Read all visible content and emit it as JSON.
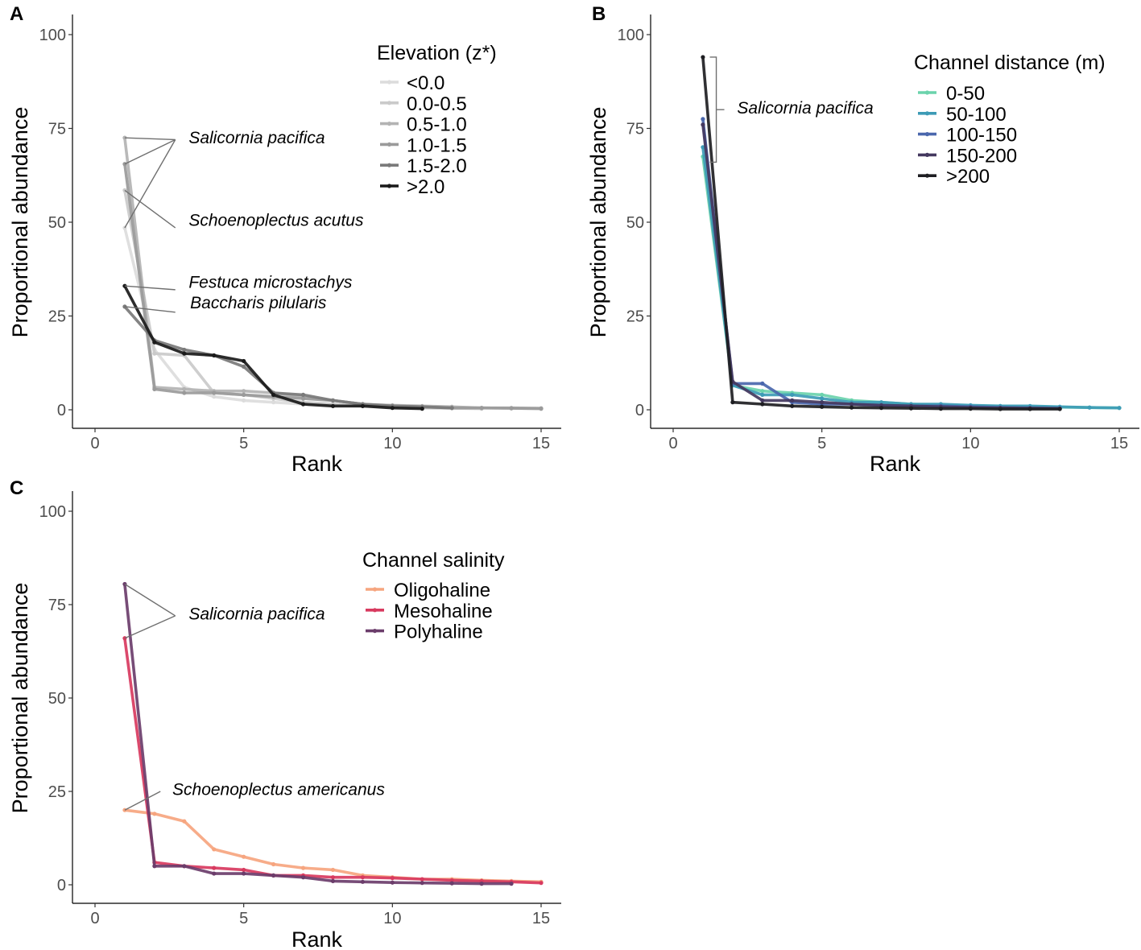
{
  "chart_data": [
    {
      "panel": "A",
      "type": "line",
      "xlabel": "Rank",
      "ylabel": "Proportional abundance",
      "xlim": [
        0,
        15
      ],
      "ylim": [
        0,
        100
      ],
      "xticks": [
        0,
        5,
        10,
        15
      ],
      "yticks": [
        0,
        25,
        50,
        75,
        100
      ],
      "grid": false,
      "legend": {
        "title": "Elevation (z*)",
        "position": "top-right"
      },
      "series": [
        {
          "name": "<0.0",
          "color": "#dcdcdc",
          "points": [
            [
              1,
              48.5
            ],
            [
              2,
              16
            ],
            [
              3,
              6
            ],
            [
              4,
              3.5
            ],
            [
              5,
              2.5
            ],
            [
              6,
              2
            ],
            [
              7,
              1.5
            ],
            [
              8,
              1.2
            ],
            [
              9,
              1
            ],
            [
              10,
              0.8
            ],
            [
              11,
              0.6
            ],
            [
              12,
              0.5
            ],
            [
              13,
              0.5
            ],
            [
              14,
              0.4
            ],
            [
              15,
              0.3
            ]
          ]
        },
        {
          "name": "0.0-0.5",
          "color": "#cacaca",
          "points": [
            [
              1,
              58.5
            ],
            [
              2,
              15
            ],
            [
              3,
              14.5
            ],
            [
              4,
              4.5
            ],
            [
              5,
              4
            ],
            [
              6,
              3
            ],
            [
              7,
              2
            ],
            [
              8,
              1.5
            ],
            [
              9,
              1
            ],
            [
              10,
              0.8
            ],
            [
              11,
              0.5
            ],
            [
              12,
              0.4
            ],
            [
              13,
              0.3
            ]
          ]
        },
        {
          "name": "0.5-1.0",
          "color": "#b3b3b3",
          "points": [
            [
              1,
              72.5
            ],
            [
              2,
              6
            ],
            [
              3,
              5.5
            ],
            [
              4,
              5
            ],
            [
              5,
              5
            ],
            [
              6,
              4.5
            ],
            [
              7,
              3.5
            ],
            [
              8,
              2.5
            ],
            [
              9,
              1.5
            ],
            [
              10,
              1.2
            ],
            [
              11,
              1
            ],
            [
              12,
              0.8
            ],
            [
              13,
              0.5
            ],
            [
              14,
              0.5
            ],
            [
              15,
              0.4
            ]
          ]
        },
        {
          "name": "1.0-1.5",
          "color": "#9a9a9a",
          "points": [
            [
              1,
              65.5
            ],
            [
              2,
              5.5
            ],
            [
              3,
              4.5
            ],
            [
              4,
              4.5
            ],
            [
              5,
              4
            ],
            [
              6,
              3.5
            ],
            [
              7,
              3
            ],
            [
              8,
              2.5
            ],
            [
              9,
              1.5
            ],
            [
              10,
              1
            ],
            [
              11,
              0.8
            ],
            [
              12,
              0.5
            ],
            [
              13,
              0.5
            ],
            [
              14,
              0.4
            ],
            [
              15,
              0.3
            ]
          ]
        },
        {
          "name": "1.5-2.0",
          "color": "#7a7a7a",
          "points": [
            [
              1,
              27.5
            ],
            [
              2,
              18.5
            ],
            [
              3,
              16
            ],
            [
              4,
              14.5
            ],
            [
              5,
              11.5
            ],
            [
              6,
              4.5
            ],
            [
              7,
              4
            ],
            [
              8,
              2.5
            ],
            [
              9,
              1.5
            ],
            [
              10,
              1
            ],
            [
              11,
              0.8
            ],
            [
              12,
              0.5
            ]
          ]
        },
        {
          "name": ">2.0",
          "color": "#1a1a1a",
          "points": [
            [
              1,
              33
            ],
            [
              2,
              18
            ],
            [
              3,
              15
            ],
            [
              4,
              14.5
            ],
            [
              5,
              13
            ],
            [
              6,
              4
            ],
            [
              7,
              1.5
            ],
            [
              8,
              1
            ],
            [
              9,
              1
            ],
            [
              10,
              0.5
            ],
            [
              11,
              0.3
            ]
          ]
        }
      ],
      "annotations": [
        {
          "text": "Salicornia pacifica",
          "x": 3.15,
          "y": 71,
          "targets": [
            [
              1,
              72.5
            ],
            [
              1,
              65.5
            ],
            [
              1,
              48.5
            ]
          ],
          "from": [
            2.7,
            72
          ]
        },
        {
          "text": "Schoenoplectus acutus",
          "x": 3.15,
          "y": 49,
          "targets": [
            [
              1,
              58.5
            ]
          ],
          "from": [
            2.7,
            48.5
          ]
        },
        {
          "text": "Festuca microstachys",
          "x": 3.15,
          "y": 32.5,
          "targets": [
            [
              1,
              33
            ]
          ],
          "from": [
            2.7,
            32
          ]
        },
        {
          "text": "Baccharis pilularis",
          "x": 3.2,
          "y": 27,
          "targets": [
            [
              1,
              27.5
            ]
          ],
          "from": [
            2.7,
            26
          ]
        }
      ]
    },
    {
      "panel": "B",
      "type": "line",
      "xlabel": "Rank",
      "ylabel": "Proportional abundance",
      "xlim": [
        0,
        15
      ],
      "ylim": [
        0,
        100
      ],
      "xticks": [
        0,
        5,
        10,
        15
      ],
      "yticks": [
        0,
        25,
        50,
        75,
        100
      ],
      "grid": false,
      "legend": {
        "title": "Channel distance (m)",
        "position": "top-right"
      },
      "series": [
        {
          "name": "0-50",
          "color": "#6bd3ac",
          "points": [
            [
              1,
              67.5
            ],
            [
              2,
              6.5
            ],
            [
              3,
              5
            ],
            [
              4,
              4.5
            ],
            [
              5,
              4
            ],
            [
              6,
              2.5
            ],
            [
              7,
              2
            ],
            [
              8,
              1.5
            ],
            [
              9,
              1.2
            ],
            [
              10,
              1
            ],
            [
              11,
              1
            ],
            [
              12,
              0.8
            ],
            [
              13,
              0.7
            ],
            [
              14,
              0.6
            ],
            [
              15,
              0.5
            ]
          ]
        },
        {
          "name": "50-100",
          "color": "#3d9bb6",
          "points": [
            [
              1,
              70
            ],
            [
              2,
              6.5
            ],
            [
              3,
              4
            ],
            [
              4,
              4
            ],
            [
              5,
              3
            ],
            [
              6,
              2
            ],
            [
              7,
              2
            ],
            [
              8,
              1.5
            ],
            [
              9,
              1.5
            ],
            [
              10,
              1.2
            ],
            [
              11,
              1
            ],
            [
              12,
              1
            ],
            [
              13,
              0.8
            ],
            [
              14,
              0.6
            ],
            [
              15,
              0.5
            ]
          ]
        },
        {
          "name": "100-150",
          "color": "#4a67ad",
          "points": [
            [
              1,
              77.5
            ],
            [
              2,
              7
            ],
            [
              3,
              7
            ],
            [
              4,
              2
            ],
            [
              5,
              1.5
            ],
            [
              6,
              1.5
            ],
            [
              7,
              1.2
            ],
            [
              8,
              1
            ],
            [
              9,
              1
            ],
            [
              10,
              0.8
            ],
            [
              11,
              0.6
            ],
            [
              12,
              0.5
            ],
            [
              13,
              0.4
            ]
          ]
        },
        {
          "name": "150-200",
          "color": "#44385f",
          "points": [
            [
              1,
              76
            ],
            [
              2,
              7.5
            ],
            [
              3,
              2.5
            ],
            [
              4,
              2.5
            ],
            [
              5,
              2
            ],
            [
              6,
              1.5
            ],
            [
              7,
              1.2
            ],
            [
              8,
              1
            ],
            [
              9,
              0.8
            ],
            [
              10,
              0.6
            ],
            [
              11,
              0.5
            ],
            [
              12,
              0.4
            ],
            [
              13,
              0.3
            ]
          ]
        },
        {
          "name": ">200",
          "color": "#1e1e22",
          "points": [
            [
              1,
              94
            ],
            [
              2,
              2
            ],
            [
              3,
              1.5
            ],
            [
              4,
              1
            ],
            [
              5,
              0.8
            ],
            [
              6,
              0.6
            ],
            [
              7,
              0.5
            ],
            [
              8,
              0.4
            ],
            [
              9,
              0.3
            ],
            [
              10,
              0.3
            ],
            [
              11,
              0.2
            ],
            [
              12,
              0.2
            ],
            [
              13,
              0.2
            ]
          ]
        }
      ],
      "annotations": [
        {
          "text": "Salicornia pacifica",
          "x": 2.15,
          "y": 79,
          "bracket": [
            66,
            94
          ]
        }
      ]
    },
    {
      "panel": "C",
      "type": "line",
      "xlabel": "Rank",
      "ylabel": "Proportional abundance",
      "xlim": [
        0,
        15
      ],
      "ylim": [
        0,
        100
      ],
      "xticks": [
        0,
        5,
        10,
        15
      ],
      "yticks": [
        0,
        25,
        50,
        75,
        100
      ],
      "grid": false,
      "legend": {
        "title": "Channel salinity",
        "position": "top-right"
      },
      "series": [
        {
          "name": "Oligohaline",
          "color": "#f6a57f",
          "points": [
            [
              1,
              20
            ],
            [
              2,
              19
            ],
            [
              3,
              17
            ],
            [
              4,
              9.5
            ],
            [
              5,
              7.5
            ],
            [
              6,
              5.5
            ],
            [
              7,
              4.5
            ],
            [
              8,
              4
            ],
            [
              9,
              2.5
            ],
            [
              10,
              2
            ],
            [
              11,
              1.5
            ],
            [
              12,
              1.5
            ],
            [
              13,
              1.2
            ],
            [
              14,
              1
            ],
            [
              15,
              0.8
            ]
          ]
        },
        {
          "name": "Mesohaline",
          "color": "#d83a5f",
          "points": [
            [
              1,
              66
            ],
            [
              2,
              6
            ],
            [
              3,
              5
            ],
            [
              4,
              4.5
            ],
            [
              5,
              4
            ],
            [
              6,
              2.5
            ],
            [
              7,
              2.5
            ],
            [
              8,
              2
            ],
            [
              9,
              2
            ],
            [
              10,
              1.8
            ],
            [
              11,
              1.5
            ],
            [
              12,
              1.2
            ],
            [
              13,
              1
            ],
            [
              14,
              0.8
            ],
            [
              15,
              0.5
            ]
          ]
        },
        {
          "name": "Polyhaline",
          "color": "#6b3d6b",
          "points": [
            [
              1,
              80.5
            ],
            [
              2,
              5
            ],
            [
              3,
              5
            ],
            [
              4,
              3
            ],
            [
              5,
              3
            ],
            [
              6,
              2.5
            ],
            [
              7,
              2
            ],
            [
              8,
              1
            ],
            [
              9,
              0.8
            ],
            [
              10,
              0.6
            ],
            [
              11,
              0.5
            ],
            [
              12,
              0.4
            ],
            [
              13,
              0.3
            ],
            [
              14,
              0.3
            ]
          ]
        }
      ],
      "annotations": [
        {
          "text": "Salicornia pacifica",
          "x": 3.15,
          "y": 71,
          "targets": [
            [
              1,
              80.5
            ],
            [
              1,
              66
            ]
          ],
          "from": [
            2.7,
            72
          ]
        },
        {
          "text": "Schoenoplectus americanus",
          "x": 2.6,
          "y": 24,
          "targets": [
            [
              1,
              20
            ]
          ],
          "from": [
            2.2,
            25
          ]
        }
      ]
    }
  ]
}
